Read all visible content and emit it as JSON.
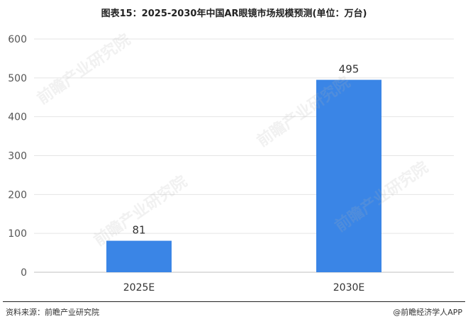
{
  "title": "图表15：2025-2030年中国AR眼镜市场规模预测(单位：万台)",
  "source": "资料来源：前瞻产业研究院",
  "credit": "@前瞻经济学人APP",
  "watermark": "前瞻产业研究院",
  "colors": {
    "bar": "#3a85e6",
    "grid": "#e5e5e5",
    "axis": "#bfbfbf",
    "tick_text": "#555555"
  },
  "chart_data": {
    "type": "bar",
    "title": "图表15：2025-2030年中国AR眼镜市场规模预测(单位：万台)",
    "categories": [
      "2025E",
      "2030E"
    ],
    "values": [
      81,
      495
    ],
    "data_labels": [
      "81",
      "495"
    ],
    "xlabel": "",
    "ylabel": "",
    "ylim": [
      0,
      600
    ],
    "yticks": [
      0,
      100,
      200,
      300,
      400,
      500,
      600
    ],
    "grid": true,
    "legend": "none"
  }
}
